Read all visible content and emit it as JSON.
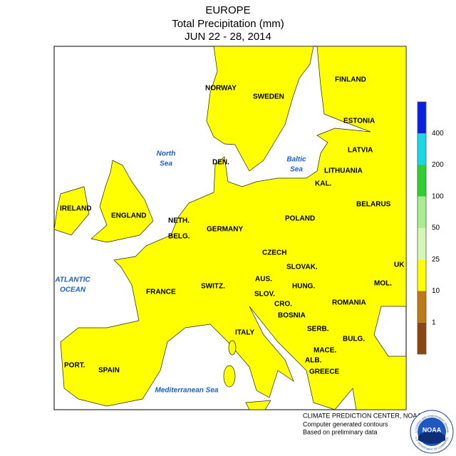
{
  "header": {
    "title": "EUROPE",
    "subtitle": "Total Precipitation (mm)",
    "period": "JUN 22 - 28, 2014"
  },
  "map": {
    "countries": [
      "NORWAY",
      "SWEDEN",
      "FINLAND",
      "ESTONIA",
      "LATVIA",
      "DEN.",
      "LITHUANIA",
      "KAL.",
      "IRELAND",
      "ENGLAND",
      "NETH.",
      "BELG.",
      "GERMANY",
      "POLAND",
      "BELARUS",
      "CZECH",
      "SLOVAK.",
      "UK",
      "AUS.",
      "HUNG.",
      "MOL.",
      "FRANCE",
      "SWITZ.",
      "SLOV.",
      "CRO.",
      "ROMANIA",
      "BOSNIA",
      "SERB.",
      "BULG.",
      "ITALY",
      "MACE.",
      "ALB.",
      "GREECE",
      "PORT.",
      "SPAIN"
    ],
    "seas": [
      [
        "North",
        "Sea"
      ],
      [
        "Baltic",
        "Sea"
      ],
      [
        "ATLANTIC",
        "OCEAN"
      ],
      [
        "Mediterranean Sea"
      ]
    ]
  },
  "legend": {
    "ticks": [
      1,
      10,
      25,
      50,
      100,
      200,
      400
    ],
    "colors": [
      "#8a4712",
      "#bf7816",
      "#ffff00",
      "#d4f7b8",
      "#a6ee90",
      "#2fd02f",
      "#18d8e8",
      "#0a1ee6"
    ]
  },
  "credits": [
    "CLIMATE PREDICTION CENTER, NOAA",
    "Computer generated contours",
    "Based on preliminary data"
  ],
  "logo": {
    "text": "NOAA",
    "ring_top": "NATIONAL OCEANIC AND ATMOSPHERIC ADMINISTRATION",
    "ring_bottom": "U.S. DEPARTMENT OF COMMERCE"
  }
}
